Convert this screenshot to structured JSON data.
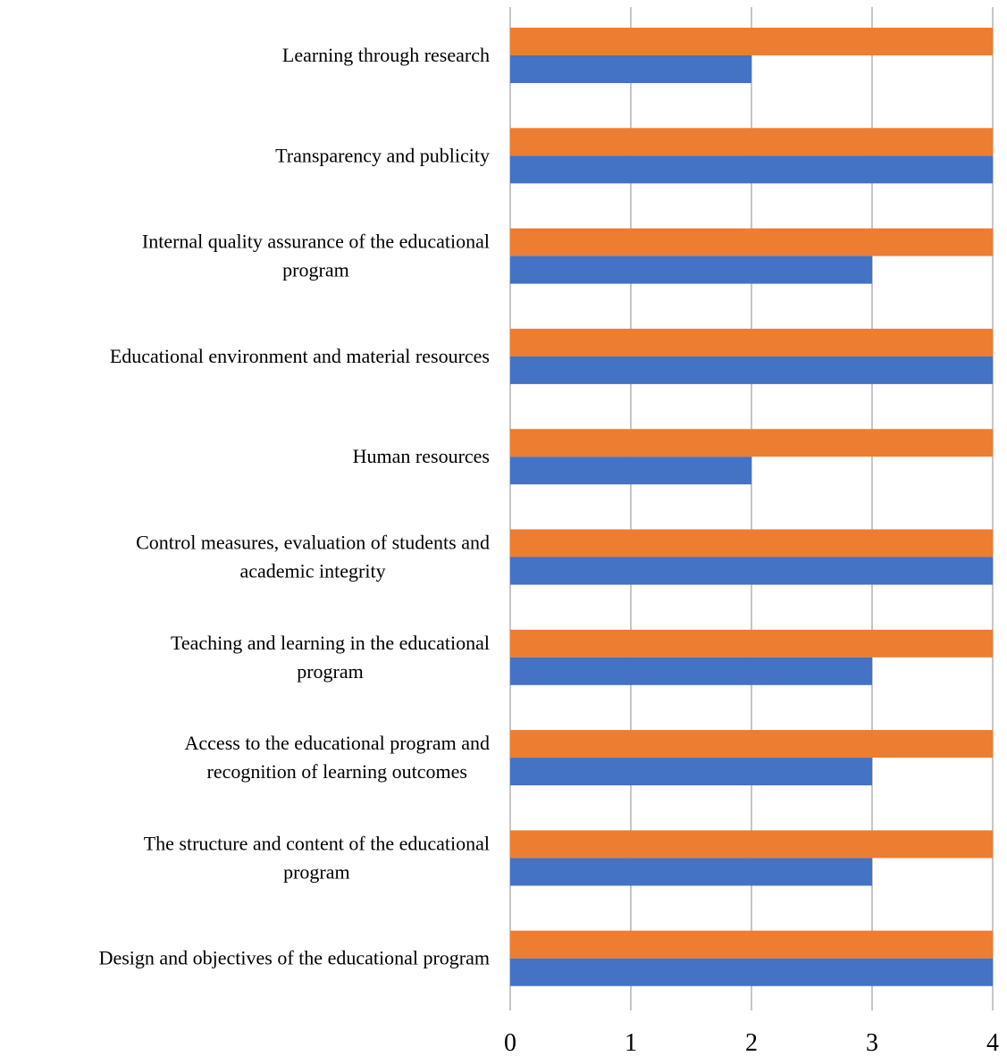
{
  "chart_data": {
    "type": "bar",
    "orientation": "horizontal",
    "categories": [
      [
        "Learning through research"
      ],
      [
        "Transparency and publicity"
      ],
      [
        "Internal quality assurance of the educational",
        "program"
      ],
      [
        "Educational environment and material resources"
      ],
      [
        "Human resources"
      ],
      [
        "Control measures, evaluation of students and",
        "academic integrity"
      ],
      [
        "Teaching and learning in the educational",
        "program"
      ],
      [
        "Access to the educational program and",
        "recognition of learning outcomes"
      ],
      [
        "The structure and content of the educational",
        "program"
      ],
      [
        "Design and objectives of the educational program"
      ]
    ],
    "series": [
      {
        "color": "#ED7D31",
        "values": [
          4,
          4,
          4,
          4,
          4,
          4,
          4,
          4,
          4,
          4
        ]
      },
      {
        "color": "#4472C4",
        "values": [
          2,
          4,
          3,
          4,
          2,
          4,
          3,
          3,
          3,
          4
        ]
      }
    ],
    "xlim": [
      0,
      4
    ],
    "xticks": [
      "0",
      "1",
      "2",
      "3",
      "4"
    ],
    "grid": true,
    "legend": "none",
    "title": "",
    "xlabel": "",
    "ylabel": ""
  }
}
